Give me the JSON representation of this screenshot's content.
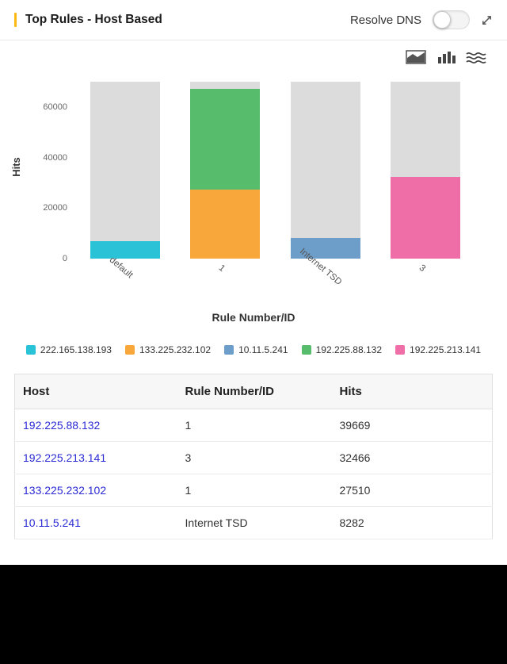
{
  "widget": {
    "title": "Top Rules - Host Based",
    "resolve_dns_label": "Resolve DNS",
    "toggle_state": "off",
    "accent_color": "#fdb913"
  },
  "chart_toolbar": {
    "icons": [
      "area-chart-icon",
      "bar-chart-icon",
      "stream-chart-icon"
    ]
  },
  "chart_data": {
    "type": "bar",
    "stacked": true,
    "xlabel": "Rule Number/ID",
    "ylabel": "Hits",
    "categories": [
      "default",
      "1",
      "Internet TSD",
      "3"
    ],
    "series": [
      {
        "name": "222.165.138.193",
        "color": "#29c2d6",
        "values": [
          7000,
          0,
          0,
          0
        ]
      },
      {
        "name": "133.225.232.102",
        "color": "#f8a83b",
        "values": [
          0,
          27510,
          0,
          0
        ]
      },
      {
        "name": "10.11.5.241",
        "color": "#6d9eca",
        "values": [
          0,
          0,
          8282,
          0
        ]
      },
      {
        "name": "192.225.88.132",
        "color": "#57bd6c",
        "values": [
          0,
          39669,
          0,
          0
        ]
      },
      {
        "name": "192.225.213.141",
        "color": "#ef6ea8",
        "values": [
          0,
          0,
          0,
          32466
        ]
      }
    ],
    "background_bar_value": 70160,
    "background_bar_color": "#dcdcdc",
    "ylim": [
      0,
      70160
    ],
    "yticks": [
      0,
      20000,
      40000,
      60000
    ],
    "legend_position": "bottom",
    "grid": false
  },
  "table": {
    "headers": [
      "Host",
      "Rule Number/ID",
      "Hits"
    ],
    "rows": [
      {
        "host": "192.225.88.132",
        "rule": "1",
        "hits": "39669"
      },
      {
        "host": "192.225.213.141",
        "rule": "3",
        "hits": "32466"
      },
      {
        "host": "133.225.232.102",
        "rule": "1",
        "hits": "27510"
      },
      {
        "host": "10.11.5.241",
        "rule": "Internet TSD",
        "hits": "8282"
      }
    ]
  }
}
